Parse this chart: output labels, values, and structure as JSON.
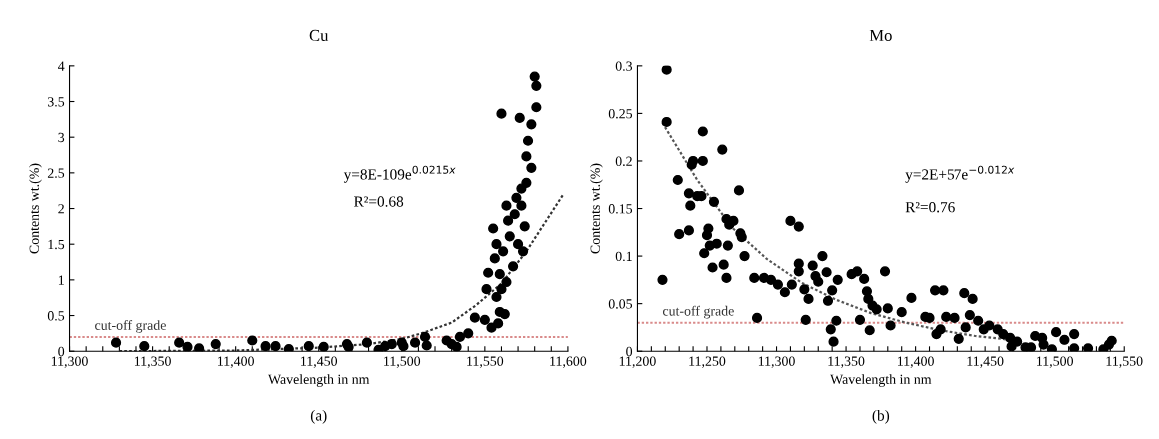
{
  "chart_data": [
    {
      "type": "scatter",
      "title": "Cu",
      "xlabel": "Wavelength in nm",
      "ylabel": "Contents wt.(%)",
      "marker": "circle",
      "grid": false,
      "legend": false,
      "xlim": [
        11300,
        11600
      ],
      "ylim": [
        0,
        4
      ],
      "xticks": [
        {
          "value": 11300,
          "label": "11,300"
        },
        {
          "value": 11310,
          "label": null
        },
        {
          "value": 11320,
          "label": null
        },
        {
          "value": 11330,
          "label": null
        },
        {
          "value": 11340,
          "label": null
        },
        {
          "value": 11350,
          "label": "11,350"
        },
        {
          "value": 11360,
          "label": null
        },
        {
          "value": 11370,
          "label": null
        },
        {
          "value": 11380,
          "label": null
        },
        {
          "value": 11390,
          "label": null
        },
        {
          "value": 11400,
          "label": "11,400"
        },
        {
          "value": 11410,
          "label": null
        },
        {
          "value": 11420,
          "label": null
        },
        {
          "value": 11430,
          "label": null
        },
        {
          "value": 11440,
          "label": null
        },
        {
          "value": 11450,
          "label": "11,450"
        },
        {
          "value": 11460,
          "label": null
        },
        {
          "value": 11470,
          "label": null
        },
        {
          "value": 11480,
          "label": null
        },
        {
          "value": 11490,
          "label": null
        },
        {
          "value": 11500,
          "label": "11,500"
        },
        {
          "value": 11510,
          "label": null
        },
        {
          "value": 11520,
          "label": null
        },
        {
          "value": 11530,
          "label": null
        },
        {
          "value": 11540,
          "label": null
        },
        {
          "value": 11550,
          "label": "11,550"
        },
        {
          "value": 11560,
          "label": null
        },
        {
          "value": 11570,
          "label": null
        },
        {
          "value": 11580,
          "label": null
        },
        {
          "value": 11590,
          "label": null
        },
        {
          "value": 11600,
          "label": "11,600"
        }
      ],
      "yticks": [
        0,
        0.5,
        1,
        1.5,
        2,
        2.5,
        3,
        3.5,
        4
      ],
      "ref_lines": [
        {
          "axis": "y",
          "value": 0.2,
          "label": "cut-off grade",
          "color": "#d98a8a",
          "line_style": "dotted"
        }
      ],
      "annotations": [
        "y=8E-109e$^{0.0215x}$",
        "R²=0.68",
        "(a)"
      ],
      "series": [
        {
          "color": "#000000",
          "x": [
            11328,
            11345,
            11366,
            11371,
            11378,
            11388,
            11410,
            11418,
            11424,
            11432,
            11444,
            11453,
            11467,
            11468,
            11479,
            11486,
            11490,
            11494,
            11500,
            11501,
            11508,
            11514,
            11515,
            11527,
            11530,
            11533,
            11535,
            11540,
            11544,
            11550,
            11551,
            11552,
            11554,
            11555,
            11557,
            11558,
            11559,
            11560,
            11561,
            11562,
            11563,
            11563,
            11565,
            11567,
            11568,
            11569,
            11570,
            11571,
            11572,
            11573,
            11574,
            11575,
            11575,
            11576,
            11578,
            11578,
            11580,
            11581,
            11581,
            11556,
            11559,
            11557,
            11564,
            11572,
            11560
          ],
          "values": [
            0.12,
            0.07,
            0.12,
            0.06,
            0.04,
            0.1,
            0.15,
            0.07,
            0.07,
            0.03,
            0.07,
            0.06,
            0.1,
            0.06,
            0.12,
            0.02,
            0.07,
            0.1,
            0.12,
            0.07,
            0.12,
            0.2,
            0.08,
            0.15,
            0.1,
            0.06,
            0.2,
            0.25,
            0.47,
            0.44,
            0.87,
            1.1,
            0.33,
            1.72,
            0.76,
            0.39,
            1.08,
            3.33,
            1.4,
            0.52,
            2.04,
            0.97,
            1.61,
            1.19,
            1.92,
            2.15,
            1.5,
            3.27,
            2.28,
            1.4,
            1.75,
            2.36,
            2.73,
            2.95,
            2.57,
            3.18,
            3.85,
            3.72,
            3.42,
            1.3,
            0.55,
            1.5,
            1.83,
            2.04,
            0.87
          ]
        },
        {
          "type": "line",
          "marker": "none",
          "color": "#333333",
          "line_style": "dotted",
          "x": [
            11330,
            11400,
            11450,
            11480,
            11500,
            11513,
            11530,
            11545,
            11560,
            11575,
            11597
          ],
          "values": [
            0.0,
            0.01,
            0.05,
            0.1,
            0.17,
            0.26,
            0.4,
            0.65,
            0.95,
            1.4,
            2.19
          ]
        }
      ]
    },
    {
      "type": "scatter",
      "title": "Mo",
      "xlabel": "Wavelength in nm",
      "ylabel": "Contents wt.(%)",
      "marker": "circle",
      "grid": false,
      "legend": false,
      "xlim": [
        11200,
        11550
      ],
      "ylim": [
        0,
        0.3
      ],
      "xticks": [
        {
          "value": 11200,
          "label": "11,200"
        },
        {
          "value": 11210,
          "label": null
        },
        {
          "value": 11220,
          "label": null
        },
        {
          "value": 11230,
          "label": null
        },
        {
          "value": 11240,
          "label": null
        },
        {
          "value": 11250,
          "label": "11,250"
        },
        {
          "value": 11260,
          "label": null
        },
        {
          "value": 11270,
          "label": null
        },
        {
          "value": 11280,
          "label": null
        },
        {
          "value": 11290,
          "label": null
        },
        {
          "value": 11300,
          "label": "11,300"
        },
        {
          "value": 11310,
          "label": null
        },
        {
          "value": 11320,
          "label": null
        },
        {
          "value": 11330,
          "label": null
        },
        {
          "value": 11340,
          "label": null
        },
        {
          "value": 11350,
          "label": "11,350"
        },
        {
          "value": 11360,
          "label": null
        },
        {
          "value": 11370,
          "label": null
        },
        {
          "value": 11380,
          "label": null
        },
        {
          "value": 11390,
          "label": null
        },
        {
          "value": 11400,
          "label": "11,400"
        },
        {
          "value": 11410,
          "label": null
        },
        {
          "value": 11420,
          "label": null
        },
        {
          "value": 11430,
          "label": null
        },
        {
          "value": 11440,
          "label": null
        },
        {
          "value": 11450,
          "label": "11,450"
        },
        {
          "value": 11460,
          "label": null
        },
        {
          "value": 11470,
          "label": null
        },
        {
          "value": 11480,
          "label": null
        },
        {
          "value": 11490,
          "label": null
        },
        {
          "value": 11500,
          "label": "11,500"
        },
        {
          "value": 11510,
          "label": null
        },
        {
          "value": 11520,
          "label": null
        },
        {
          "value": 11530,
          "label": null
        },
        {
          "value": 11540,
          "label": null
        },
        {
          "value": 11550,
          "label": "11,550"
        }
      ],
      "yticks": [
        0,
        0.05,
        0.1,
        0.15,
        0.2,
        0.25,
        0.3
      ],
      "ref_lines": [
        {
          "axis": "y",
          "value": 0.03,
          "label": "cut-off grade",
          "color": "#d98a8a",
          "line_style": "dotted"
        }
      ],
      "annotations": [
        "y=2E+57e$^{−0.012x}$",
        "R²=0.76",
        "(b)"
      ],
      "series": [
        {
          "color": "#000000",
          "x": [
            11218,
            11221,
            11221,
            11229,
            11230,
            11237,
            11237,
            11238,
            11239,
            11240,
            11243,
            11246,
            11247,
            11247,
            11248,
            11250,
            11251,
            11252,
            11254,
            11255,
            11257,
            11261,
            11262,
            11264,
            11264,
            11265,
            11266,
            11269,
            11273,
            11274,
            11275,
            11277,
            11284,
            11286,
            11291,
            11296,
            11301,
            11306,
            11310,
            11311,
            11316,
            11316,
            11316,
            11320,
            11321,
            11323,
            11326,
            11328,
            11330,
            11333,
            11336,
            11337,
            11339,
            11340,
            11341,
            11343,
            11344,
            11354,
            11358,
            11360,
            11363,
            11365,
            11366,
            11367,
            11369,
            11372,
            11378,
            11380,
            11382,
            11390,
            11397,
            11407,
            11410,
            11414,
            11415,
            11418,
            11420,
            11422,
            11428,
            11431,
            11435,
            11436,
            11439,
            11441,
            11445,
            11449,
            11453,
            11459,
            11463,
            11468,
            11469,
            11473,
            11479,
            11483,
            11486,
            11491,
            11492,
            11498,
            11501,
            11507,
            11514,
            11514,
            11524,
            11535,
            11539,
            11541
          ],
          "values": [
            0.075,
            0.296,
            0.241,
            0.18,
            0.123,
            0.127,
            0.166,
            0.153,
            0.196,
            0.2,
            0.163,
            0.163,
            0.231,
            0.2,
            0.103,
            0.122,
            0.129,
            0.111,
            0.088,
            0.157,
            0.113,
            0.212,
            0.091,
            0.077,
            0.139,
            0.111,
            0.133,
            0.137,
            0.169,
            0.124,
            0.12,
            0.1,
            0.077,
            0.035,
            0.077,
            0.075,
            0.07,
            0.062,
            0.137,
            0.07,
            0.131,
            0.092,
            0.084,
            0.065,
            0.033,
            0.055,
            0.09,
            0.079,
            0.073,
            0.1,
            0.083,
            0.053,
            0.023,
            0.064,
            0.01,
            0.032,
            0.075,
            0.081,
            0.084,
            0.033,
            0.076,
            0.063,
            0.055,
            0.022,
            0.048,
            0.044,
            0.084,
            0.045,
            0.027,
            0.041,
            0.056,
            0.036,
            0.035,
            0.064,
            0.018,
            0.023,
            0.064,
            0.036,
            0.035,
            0.013,
            0.061,
            0.025,
            0.038,
            0.055,
            0.032,
            0.023,
            0.027,
            0.023,
            0.018,
            0.014,
            0.005,
            0.01,
            0.004,
            0.004,
            0.016,
            0.014,
            0.007,
            0.002,
            0.02,
            0.012,
            0.018,
            0.003,
            0.003,
            0.002,
            0.007,
            0.011
          ]
        },
        {
          "type": "line",
          "marker": "none",
          "color": "#555555",
          "line_style": "dotted",
          "x": [
            11218,
            11243,
            11268,
            11293,
            11318,
            11343,
            11368,
            11393,
            11418,
            11443,
            11468
          ],
          "values": [
            0.24,
            0.18,
            0.13,
            0.097,
            0.072,
            0.054,
            0.04,
            0.03,
            0.022,
            0.016,
            0.012
          ]
        }
      ]
    }
  ]
}
